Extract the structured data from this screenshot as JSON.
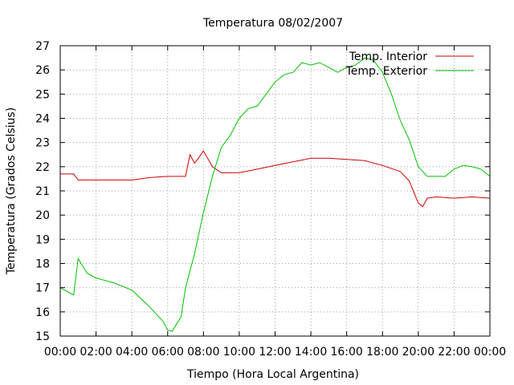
{
  "chart_data": {
    "type": "line",
    "title": "Temperatura 08/02/2007",
    "xlabel": "Tiempo (Hora Local Argentina)",
    "ylabel": "Temperatura (Grados Celsius)",
    "xlim": [
      "00:00",
      "24:00"
    ],
    "ylim": [
      15,
      27
    ],
    "grid": true,
    "legend_position": "top-right",
    "x_tick_labels": [
      "00:00",
      "02:00",
      "04:00",
      "06:00",
      "08:00",
      "10:00",
      "12:00",
      "14:00",
      "16:00",
      "18:00",
      "20:00",
      "22:00",
      "00:00"
    ],
    "y_tick_labels": [
      "15",
      "16",
      "17",
      "18",
      "19",
      "20",
      "21",
      "22",
      "23",
      "24",
      "25",
      "26",
      "27"
    ],
    "series": [
      {
        "name": "Temp. Interior",
        "color": "#cc0000",
        "x": [
          "00:00",
          "00:45",
          "01:00",
          "02:00",
          "03:00",
          "04:00",
          "05:00",
          "06:00",
          "07:00",
          "07:15",
          "07:30",
          "07:40",
          "08:00",
          "08:30",
          "09:00",
          "10:00",
          "11:00",
          "12:00",
          "13:00",
          "14:00",
          "15:00",
          "16:00",
          "17:00",
          "18:00",
          "19:00",
          "19:30",
          "20:00",
          "20:15",
          "20:30",
          "21:00",
          "22:00",
          "23:00",
          "24:00"
        ],
        "values": [
          21.7,
          21.7,
          21.45,
          21.45,
          21.45,
          21.45,
          21.55,
          21.6,
          21.6,
          22.5,
          22.15,
          22.3,
          22.65,
          22.0,
          21.75,
          21.75,
          21.9,
          22.05,
          22.2,
          22.35,
          22.35,
          22.3,
          22.25,
          22.05,
          21.8,
          21.4,
          20.5,
          20.35,
          20.7,
          20.75,
          20.7,
          20.75,
          20.7
        ]
      },
      {
        "name": "Temp. Exterior",
        "color": "#00c000",
        "x": [
          "00:00",
          "00:45",
          "01:00",
          "01:30",
          "02:00",
          "03:00",
          "04:00",
          "05:00",
          "05:45",
          "06:00",
          "06:15",
          "06:45",
          "07:00",
          "07:30",
          "08:00",
          "08:30",
          "09:00",
          "09:30",
          "10:00",
          "10:30",
          "11:00",
          "11:30",
          "12:00",
          "12:30",
          "13:00",
          "13:30",
          "14:00",
          "14:30",
          "15:00",
          "15:30",
          "16:00",
          "16:30",
          "17:00",
          "17:30",
          "18:00",
          "18:30",
          "19:00",
          "19:30",
          "20:00",
          "20:30",
          "21:00",
          "21:30",
          "22:00",
          "22:30",
          "23:00",
          "23:30",
          "24:00"
        ],
        "values": [
          17.0,
          16.7,
          18.2,
          17.6,
          17.4,
          17.2,
          16.9,
          16.2,
          15.6,
          15.25,
          15.2,
          15.8,
          17.0,
          18.4,
          20.1,
          21.6,
          22.8,
          23.3,
          24.0,
          24.4,
          24.5,
          25.0,
          25.5,
          25.8,
          25.9,
          26.3,
          26.2,
          26.3,
          26.1,
          25.9,
          26.1,
          26.2,
          26.5,
          26.4,
          25.9,
          25.0,
          23.9,
          23.1,
          22.0,
          21.6,
          21.6,
          21.6,
          21.9,
          22.05,
          22.0,
          21.9,
          21.6
        ]
      }
    ]
  }
}
